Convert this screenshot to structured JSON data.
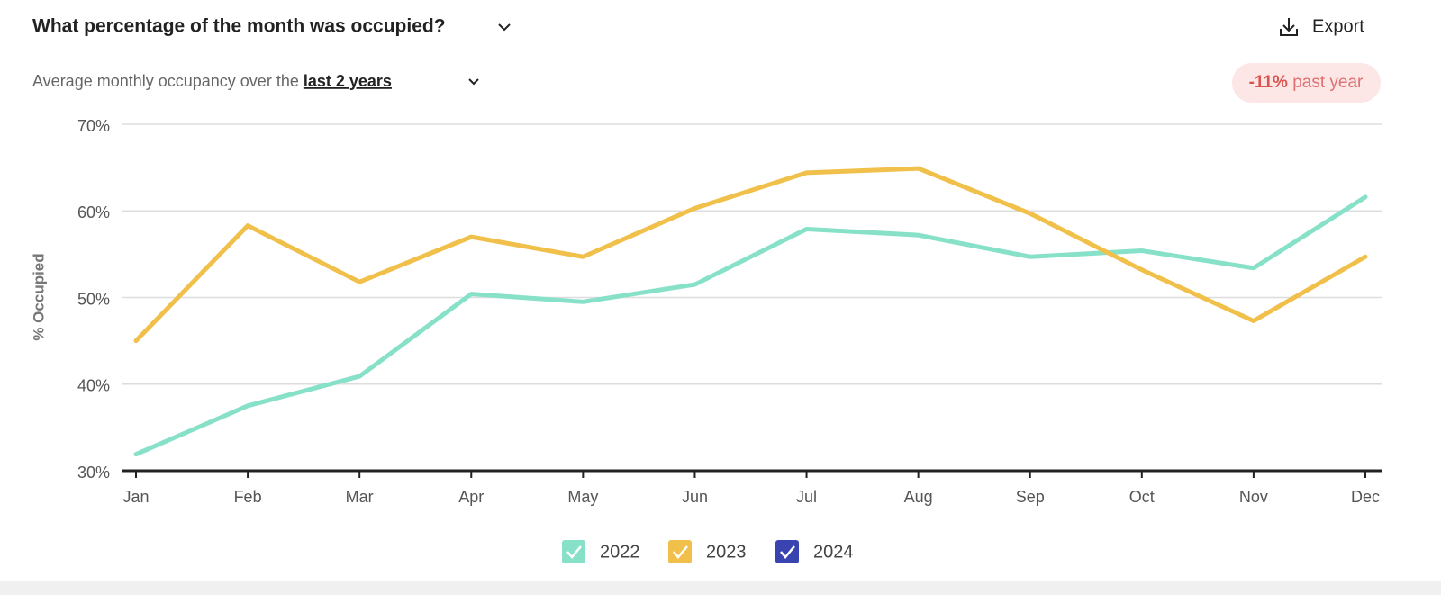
{
  "header": {
    "title": "What percentage of the month was occupied?",
    "export": "Export",
    "subtitle": "Average monthly occupancy over the ",
    "period": "last 2 years",
    "badge_value": "-11%",
    "badge_text": "past year"
  },
  "chart_data": {
    "type": "line",
    "ylabel": "% Occupied",
    "categories": [
      "Jan",
      "Feb",
      "Mar",
      "Apr",
      "May",
      "Jun",
      "Jul",
      "Aug",
      "Sep",
      "Oct",
      "Nov",
      "Dec"
    ],
    "series": [
      {
        "name": "2022",
        "color": "#87e0c8",
        "values": [
          31.9,
          37.5,
          40.9,
          50.4,
          49.5,
          51.5,
          57.9,
          57.2,
          54.7,
          55.4,
          53.4,
          61.6
        ]
      },
      {
        "name": "2023",
        "color": "#f0c04a",
        "values": [
          45.0,
          58.3,
          51.8,
          57.0,
          54.7,
          60.3,
          64.4,
          64.9,
          59.7,
          53.2,
          47.3,
          54.7
        ]
      },
      {
        "name": "2024",
        "color": "#3a44b0",
        "values": [
          null,
          null,
          null,
          null,
          null,
          null,
          null,
          null,
          null,
          null,
          null,
          null
        ]
      }
    ],
    "ylim": [
      30,
      70
    ],
    "yticks": [
      {
        "value": 30,
        "label": "30%"
      },
      {
        "value": 40,
        "label": "40%"
      },
      {
        "value": 50,
        "label": "50%"
      },
      {
        "value": 60,
        "label": "60%"
      },
      {
        "value": 70,
        "label": "70%"
      }
    ],
    "grid": true
  }
}
